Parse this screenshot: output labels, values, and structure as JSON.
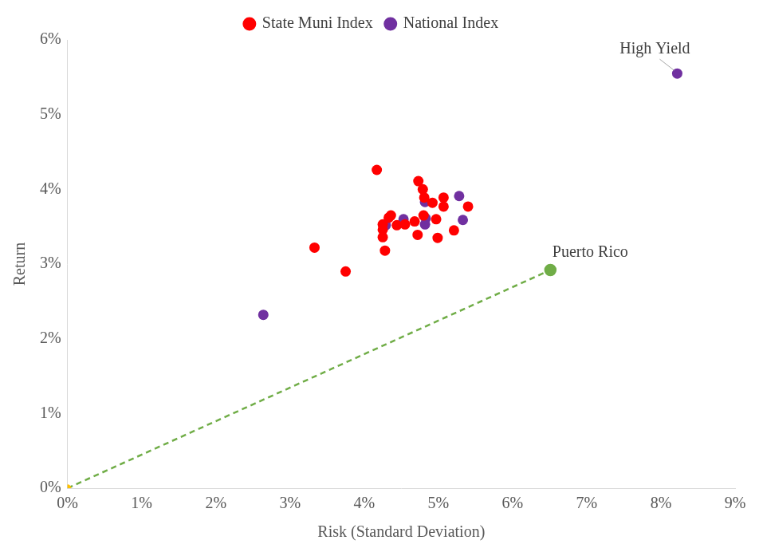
{
  "chart_data": {
    "type": "scatter",
    "x_label": "Risk (Standard Deviation)",
    "y_label": "Return",
    "legend": "top",
    "grid": false,
    "marker": "circle",
    "xlim": [
      0,
      9
    ],
    "ylim": [
      0,
      6
    ],
    "xticks": [
      {
        "value": 0,
        "label": "0%"
      },
      {
        "value": 1,
        "label": "1%"
      },
      {
        "value": 2,
        "label": "2%"
      },
      {
        "value": 3,
        "label": "3%"
      },
      {
        "value": 4,
        "label": "4%"
      },
      {
        "value": 5,
        "label": "5%"
      },
      {
        "value": 6,
        "label": "6%"
      },
      {
        "value": 7,
        "label": "7%"
      },
      {
        "value": 8,
        "label": "8%"
      },
      {
        "value": 9,
        "label": "9%"
      }
    ],
    "yticks": [
      {
        "value": 0,
        "label": "0%"
      },
      {
        "value": 1,
        "label": "1%"
      },
      {
        "value": 2,
        "label": "2%"
      },
      {
        "value": 3,
        "label": "3%"
      },
      {
        "value": 4,
        "label": "4%"
      },
      {
        "value": 5,
        "label": "5%"
      },
      {
        "value": 6,
        "label": "6%"
      }
    ],
    "series": [
      {
        "name": "State Muni Index",
        "color": "#ff0000",
        "x": [
          4.17,
          3.33,
          3.75,
          4.73,
          4.79,
          4.81,
          5.07,
          5.07,
          4.92,
          5.4,
          4.8,
          4.97,
          4.68,
          4.55,
          4.44,
          4.25,
          4.25,
          4.25,
          4.33,
          4.36,
          4.72,
          4.99,
          5.21,
          4.28
        ],
        "values": [
          4.26,
          3.22,
          2.9,
          4.11,
          4.0,
          3.89,
          3.89,
          3.77,
          3.82,
          3.77,
          3.65,
          3.6,
          3.57,
          3.53,
          3.52,
          3.53,
          3.46,
          3.36,
          3.62,
          3.65,
          3.39,
          3.35,
          3.45,
          3.18
        ]
      },
      {
        "name": "National Index",
        "color": "#7030a0",
        "x": [
          2.64,
          4.29,
          4.53,
          4.82,
          4.82,
          4.83,
          5.28,
          5.33,
          8.22
        ],
        "values": [
          2.32,
          3.52,
          3.6,
          3.83,
          3.53,
          3.61,
          3.91,
          3.59,
          5.55
        ]
      }
    ],
    "reference_line": {
      "x": [
        0,
        6.51
      ],
      "y": [
        0,
        2.92
      ],
      "color": "#70ad47",
      "colors": [
        "#ffc000",
        "#70ad47"
      ],
      "line_style": "dashed"
    },
    "annotations": [
      {
        "text": "High Yield",
        "x": 8.22,
        "y": 5.55
      },
      {
        "text": "Puerto Rico",
        "x": 6.51,
        "y": 2.92
      }
    ]
  }
}
